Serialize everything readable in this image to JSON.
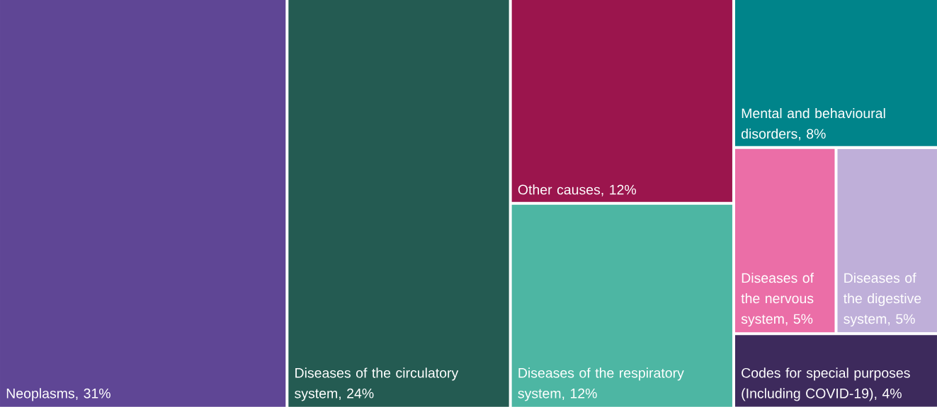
{
  "chart_data": {
    "type": "other",
    "categories": [
      "Neoplasms",
      "Diseases of the circulatory system",
      "Other causes",
      "Diseases of the respiratory system",
      "Mental and behavioural disorders",
      "Diseases of the nervous system",
      "Diseases of the digestive system",
      "Codes for special purposes (Including COVID-19)"
    ],
    "values": [
      31,
      24,
      12,
      12,
      8,
      5,
      5,
      4
    ],
    "value_labels": [
      ", 31%",
      ", 24%",
      ", 12%",
      ", 12%",
      ", 8%",
      ", 5%",
      ", 5%",
      ", 4%"
    ],
    "colors": [
      "#5f4695",
      "#245b52",
      "#9b154d",
      "#4db6a3",
      "#00848a",
      "#eb6ea7",
      "#bfafd9",
      "#3d2a5c"
    ]
  }
}
